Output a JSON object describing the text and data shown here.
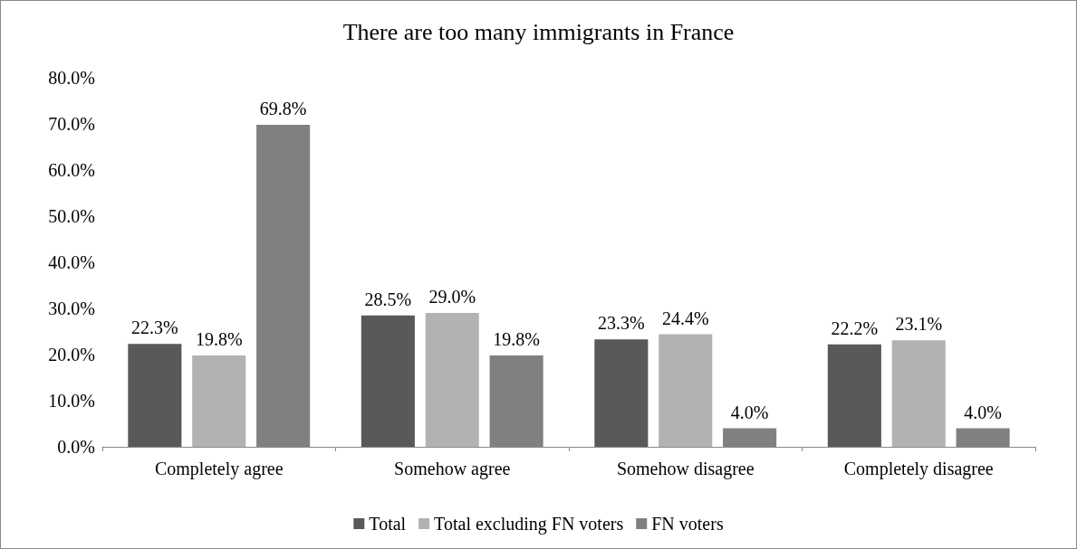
{
  "chart_data": {
    "type": "bar",
    "title": "There are too many immigrants in France",
    "categories": [
      "Completely agree",
      "Somehow agree",
      "Somehow disagree",
      "Completely disagree"
    ],
    "series": [
      {
        "name": "Total",
        "color": "#595959",
        "values": [
          22.3,
          28.5,
          23.3,
          22.2
        ],
        "value_labels": [
          "22.3%",
          "28.5%",
          "23.3%",
          "22.2%"
        ]
      },
      {
        "name": "Total excluding FN voters",
        "color": "#b2b2b2",
        "values": [
          19.8,
          29.0,
          24.4,
          23.1
        ],
        "value_labels": [
          "19.8%",
          "29.0%",
          "24.4%",
          "23.1%"
        ]
      },
      {
        "name": "FN voters",
        "color": "#808080",
        "values": [
          69.8,
          19.8,
          4.0,
          4.0
        ],
        "value_labels": [
          "69.8%",
          "19.8%",
          "4.0%",
          "4.0%"
        ]
      }
    ],
    "ylim": [
      0,
      80
    ],
    "yticks": [
      {
        "value": 0,
        "label": "0.0%"
      },
      {
        "value": 10,
        "label": "10.0%"
      },
      {
        "value": 20,
        "label": "20.0%"
      },
      {
        "value": 30,
        "label": "30.0%"
      },
      {
        "value": 40,
        "label": "40.0%"
      },
      {
        "value": 50,
        "label": "50.0%"
      },
      {
        "value": 60,
        "label": "60.0%"
      },
      {
        "value": 70,
        "label": "70.0%"
      },
      {
        "value": 80,
        "label": "80.0%"
      }
    ],
    "grid": false,
    "legend": "bottom"
  }
}
